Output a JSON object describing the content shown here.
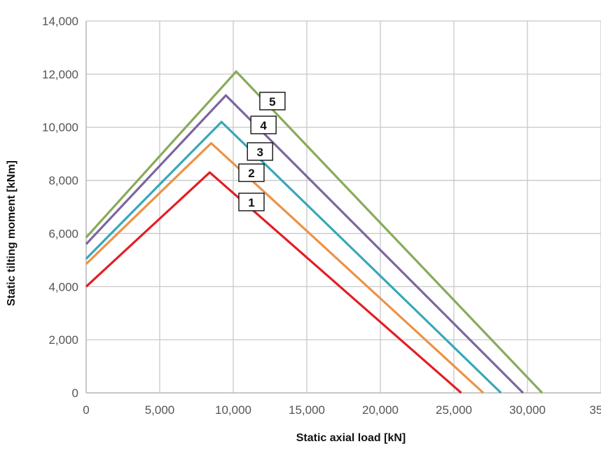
{
  "chart_data": {
    "type": "line",
    "xlabel": "Static axial load [kN]",
    "ylabel": "Static tilting moment [kNm]",
    "xlim": [
      0,
      35000
    ],
    "ylim": [
      0,
      14000
    ],
    "x_tick_labels": [
      "0",
      "5,000",
      "10,000",
      "15,000",
      "20,000",
      "25,000",
      "30,000",
      "35,0"
    ],
    "y_tick_labels": [
      "0",
      "2,000",
      "4,000",
      "6,000",
      "8,000",
      "10,000",
      "12,000",
      "14,000"
    ],
    "grid": true,
    "series": [
      {
        "name": "1",
        "color": "#e31e24",
        "points": [
          [
            0,
            4000
          ],
          [
            8400,
            8300
          ],
          [
            25500,
            0
          ]
        ]
      },
      {
        "name": "2",
        "color": "#ec9245",
        "points": [
          [
            0,
            4850
          ],
          [
            8500,
            9400
          ],
          [
            27000,
            0
          ]
        ]
      },
      {
        "name": "3",
        "color": "#38a7b8",
        "points": [
          [
            0,
            5050
          ],
          [
            9200,
            10200
          ],
          [
            28200,
            0
          ]
        ]
      },
      {
        "name": "4",
        "color": "#7b659f",
        "points": [
          [
            0,
            5600
          ],
          [
            9500,
            11200
          ],
          [
            29700,
            0
          ]
        ]
      },
      {
        "name": "5",
        "color": "#88aa5a",
        "points": [
          [
            0,
            5850
          ],
          [
            10200,
            12100
          ],
          [
            31000,
            0
          ]
        ]
      }
    ]
  }
}
